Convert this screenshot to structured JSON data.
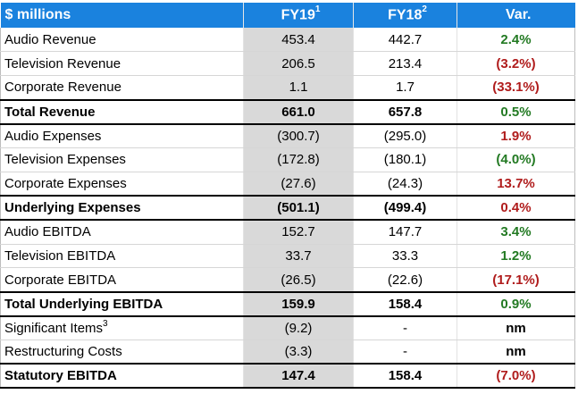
{
  "header": {
    "label_col": "$ millions",
    "fy19": "FY19",
    "fy19_note": "1",
    "fy18": "FY18",
    "fy18_note": "2",
    "var": "Var."
  },
  "rows": [
    {
      "label": "Audio Revenue",
      "note": "",
      "fy19": "453.4",
      "fy18": "442.7",
      "var": "2.4%",
      "var_tone": "pos",
      "total": false
    },
    {
      "label": "Television Revenue",
      "note": "",
      "fy19": "206.5",
      "fy18": "213.4",
      "var": "(3.2%)",
      "var_tone": "neg",
      "total": false
    },
    {
      "label": "Corporate Revenue",
      "note": "",
      "fy19": "1.1",
      "fy18": "1.7",
      "var": "(33.1%)",
      "var_tone": "neg",
      "total": false
    },
    {
      "label": "Total Revenue",
      "note": "",
      "fy19": "661.0",
      "fy18": "657.8",
      "var": "0.5%",
      "var_tone": "pos",
      "total": true
    },
    {
      "label": "Audio Expenses",
      "note": "",
      "fy19": "(300.7)",
      "fy18": "(295.0)",
      "var": "1.9%",
      "var_tone": "neg",
      "total": false
    },
    {
      "label": "Television Expenses",
      "note": "",
      "fy19": "(172.8)",
      "fy18": "(180.1)",
      "var": "(4.0%)",
      "var_tone": "pos",
      "total": false
    },
    {
      "label": "Corporate Expenses",
      "note": "",
      "fy19": "(27.6)",
      "fy18": "(24.3)",
      "var": "13.7%",
      "var_tone": "neg",
      "total": false
    },
    {
      "label": "Underlying Expenses",
      "note": "",
      "fy19": "(501.1)",
      "fy18": "(499.4)",
      "var": "0.4%",
      "var_tone": "neg",
      "total": true
    },
    {
      "label": "Audio EBITDA",
      "note": "",
      "fy19": "152.7",
      "fy18": "147.7",
      "var": "3.4%",
      "var_tone": "pos",
      "total": false
    },
    {
      "label": "Television EBITDA",
      "note": "",
      "fy19": "33.7",
      "fy18": "33.3",
      "var": "1.2%",
      "var_tone": "pos",
      "total": false
    },
    {
      "label": "Corporate EBITDA",
      "note": "",
      "fy19": "(26.5)",
      "fy18": "(22.6)",
      "var": "(17.1%)",
      "var_tone": "neg",
      "total": false
    },
    {
      "label": "Total Underlying EBITDA",
      "note": "",
      "fy19": "159.9",
      "fy18": "158.4",
      "var": "0.9%",
      "var_tone": "pos",
      "total": true
    },
    {
      "label": "Significant Items",
      "note": "3",
      "fy19": "(9.2)",
      "fy18": "-",
      "var": "nm",
      "var_tone": "neu",
      "total": false
    },
    {
      "label": "Restructuring Costs",
      "note": "",
      "fy19": "(3.3)",
      "fy18": "-",
      "var": "nm",
      "var_tone": "neu",
      "total": false
    },
    {
      "label": "Statutory EBITDA",
      "note": "",
      "fy19": "147.4",
      "fy18": "158.4",
      "var": "(7.0%)",
      "var_tone": "neg",
      "total": true
    }
  ],
  "colors": {
    "header_bg": "#1a82de",
    "fy19_shade": "#d9d9d9",
    "positive": "#237a23",
    "negative": "#b01c1c"
  }
}
